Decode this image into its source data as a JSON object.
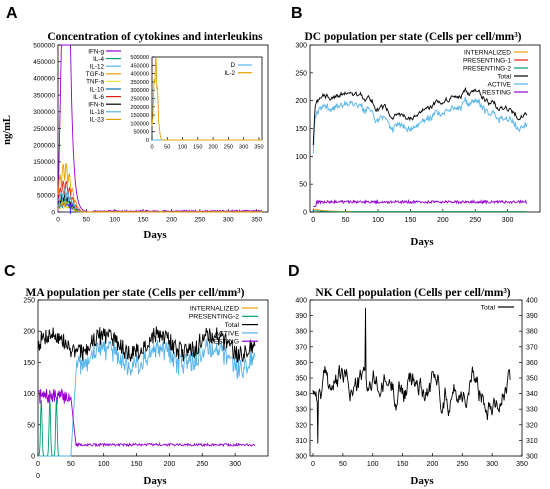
{
  "chart_data": [
    {
      "panel": "A",
      "type": "line",
      "title": "Concentration of cytokines and interleukins",
      "xlabel": "Days",
      "ylabel": "ng/mL",
      "xlim": [
        0,
        370
      ],
      "ylim": [
        0,
        500000
      ],
      "xticks": [
        0,
        50,
        100,
        150,
        200,
        250,
        300,
        350
      ],
      "yticks": [
        0,
        50000,
        100000,
        150000,
        200000,
        250000,
        300000,
        350000,
        400000,
        450000,
        500000
      ],
      "ytick_labels": [
        "0",
        "50000",
        "100000",
        "150000",
        "200000",
        "250000",
        "300000",
        "350000",
        "400000",
        "450000",
        "500000"
      ],
      "legend_position": "top-left",
      "series": [
        {
          "name": "IFN-g",
          "color": "#9400d3",
          "peak": 500000
        },
        {
          "name": "IL-4",
          "color": "#009e73",
          "peak": 38000
        },
        {
          "name": "IL-12",
          "color": "#56b4e9",
          "peak": 62000
        },
        {
          "name": "TGF-b",
          "color": "#e69f00",
          "peak": 150000
        },
        {
          "name": "TNF-a",
          "color": "#f0e442",
          "peak": 18000
        },
        {
          "name": "IL-10",
          "color": "#0072b2",
          "peak": 28000
        },
        {
          "name": "IL-6",
          "color": "#e51e10",
          "peak": 95000
        },
        {
          "name": "IFN-b",
          "color": "#000000",
          "peak": 55000
        },
        {
          "name": "IL-18",
          "color": "#56b4e9",
          "peak": 70000
        },
        {
          "name": "IL-23",
          "color": "#e69f00",
          "peak": 30000
        }
      ],
      "inset": {
        "xlim": [
          0,
          360
        ],
        "ylim": [
          0,
          500000
        ],
        "xticks": [
          0,
          50,
          100,
          150,
          200,
          250,
          300,
          350
        ],
        "yticks": [
          0,
          50000,
          100000,
          150000,
          200000,
          250000,
          300000,
          350000,
          400000,
          450000,
          500000
        ],
        "ytick_labels": [
          "0",
          "50000",
          "100000",
          "150000",
          "200000",
          "250000",
          "300000",
          "350000",
          "400000",
          "450000",
          "500000"
        ],
        "series": [
          {
            "name": "D",
            "color": "#56b4e9",
            "peak": 200
          },
          {
            "name": "IL-2",
            "color": "#e69f00",
            "peak": 500000
          }
        ]
      }
    },
    {
      "panel": "B",
      "type": "line",
      "title": "DC population per state (Cells per cell/mm³)",
      "xlabel": "Days",
      "ylabel": "",
      "xlim": [
        -5,
        350
      ],
      "ylim": [
        0,
        300
      ],
      "xticks": [
        0,
        50,
        100,
        150,
        200,
        250,
        300
      ],
      "yticks": [
        0,
        50,
        100,
        150,
        200,
        250,
        300
      ],
      "legend_position": "top-right",
      "series": [
        {
          "name": "INTERNALIZED",
          "color": "#e69f00",
          "level": 5
        },
        {
          "name": "PRESENTING-1",
          "color": "#e51e10",
          "level": 2
        },
        {
          "name": "PRESENTING-2",
          "color": "#009e73",
          "level": 3
        },
        {
          "name": "Total",
          "color": "#000000",
          "level": 190
        },
        {
          "name": "ACTIVE",
          "color": "#56b4e9",
          "level": 175
        },
        {
          "name": "RESTING",
          "color": "#9400d3",
          "level": 18
        }
      ]
    },
    {
      "panel": "C",
      "type": "line",
      "title": "MA population per state (Cells per cell/mm³)",
      "xlabel": "Days",
      "ylabel": "",
      "xlim": [
        0,
        350
      ],
      "ylim": [
        0,
        250
      ],
      "xticks": [
        0,
        50,
        100,
        150,
        200,
        250,
        300
      ],
      "yticks": [
        0,
        50,
        100,
        150,
        200,
        250
      ],
      "legend_position": "top-right",
      "series": [
        {
          "name": "INTERNALIZED",
          "color": "#e69f00",
          "level": 0
        },
        {
          "name": "PRESENTING-2",
          "color": "#009e73",
          "level": 0
        },
        {
          "name": "Total",
          "color": "#000000",
          "level": 190
        },
        {
          "name": "ACTIVE",
          "color": "#56b4e9",
          "level": 175
        },
        {
          "name": "RESTING",
          "color": "#9400d3",
          "level": 18
        }
      ]
    },
    {
      "panel": "D",
      "type": "line",
      "title": "NK Cell population (Cells per cell/mm³)",
      "xlabel": "Days",
      "ylabel": "",
      "xlim": [
        -5,
        350
      ],
      "ylim": [
        300,
        400
      ],
      "xticks": [
        0,
        50,
        100,
        150,
        200,
        250,
        300,
        350
      ],
      "yticks": [
        300,
        310,
        320,
        330,
        340,
        350,
        360,
        370,
        380,
        390,
        400
      ],
      "legend_position": "top-right",
      "series": [
        {
          "name": "Total",
          "color": "#000000",
          "mean": 345,
          "min": 308,
          "max": 395
        }
      ]
    }
  ]
}
